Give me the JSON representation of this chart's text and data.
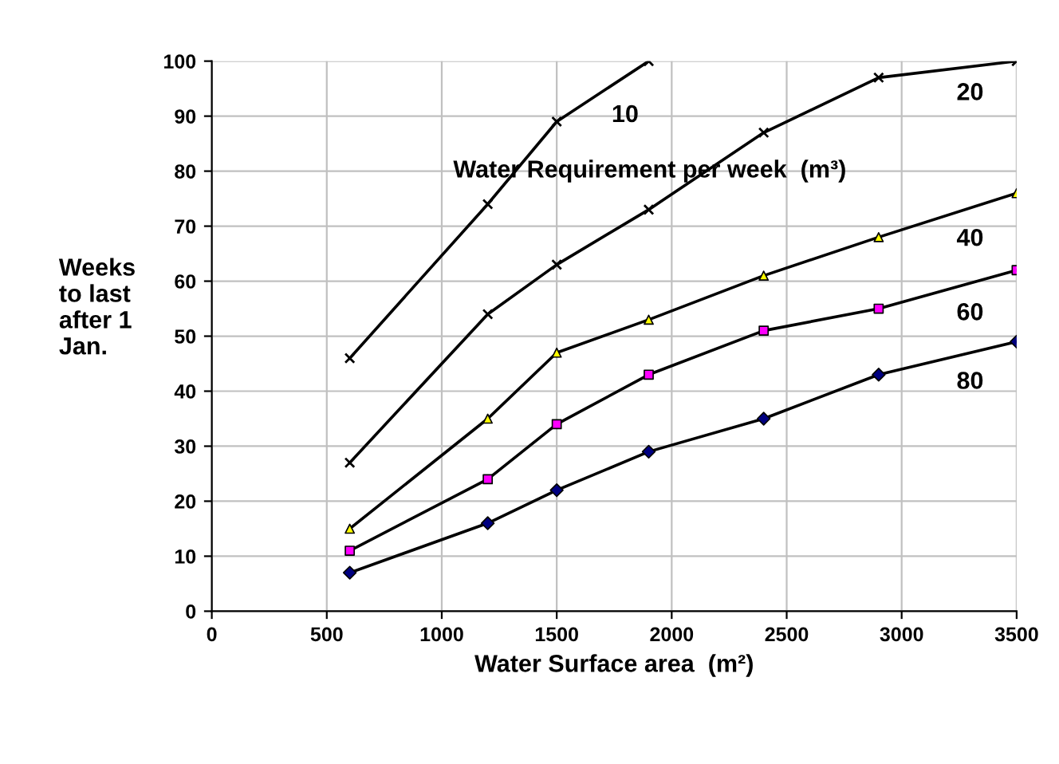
{
  "chart_data": {
    "type": "line",
    "xlabel": "Water Surface area  (m²)",
    "ylabel": "Weeks\nto last\nafter 1\nJan.",
    "annotations": [
      "Water Requirement per week  (m³)"
    ],
    "xlim": [
      0,
      3500
    ],
    "xticks": [
      0,
      500,
      1000,
      1500,
      2000,
      2500,
      3000,
      3500
    ],
    "ylim": [
      0,
      100
    ],
    "yticks": [
      0,
      10,
      20,
      30,
      40,
      50,
      60,
      70,
      80,
      90,
      100
    ],
    "grid": true,
    "legend": false,
    "line_style": "solid",
    "series": [
      {
        "name": "10",
        "color": "#000000",
        "marker": "cross",
        "colors": [
          "#000000",
          "#000000",
          "#000000",
          "#000000"
        ],
        "x": [
          600,
          1200,
          1500,
          1900
        ],
        "values": [
          46,
          74,
          89,
          100
        ]
      },
      {
        "name": "20",
        "color": "#000000",
        "marker": "cross",
        "colors": [
          "#000000",
          "#000000",
          "#000000",
          "#000000",
          "#000000",
          "#000000",
          "#000000"
        ],
        "x": [
          600,
          1200,
          1500,
          1900,
          2400,
          2900,
          3500
        ],
        "values": [
          27,
          54,
          63,
          73,
          87,
          97,
          100
        ]
      },
      {
        "name": "40",
        "color": "#000000",
        "marker": "triangle",
        "colors": [
          "#ffff00",
          "#ffff00",
          "#ffff00",
          "#ffff00",
          "#ffff00",
          "#ffff00",
          "#ffff00"
        ],
        "x": [
          600,
          1200,
          1500,
          1900,
          2400,
          2900,
          3500
        ],
        "values": [
          15,
          35,
          47,
          53,
          61,
          68,
          76
        ]
      },
      {
        "name": "60",
        "color": "#000000",
        "marker": "square",
        "colors": [
          "#ff00ff",
          "#ff00ff",
          "#ff00ff",
          "#ff00ff",
          "#ff00ff",
          "#ff00ff",
          "#ff00ff"
        ],
        "x": [
          600,
          1200,
          1500,
          1900,
          2400,
          2900,
          3500
        ],
        "values": [
          11,
          24,
          34,
          43,
          51,
          55,
          62
        ]
      },
      {
        "name": "80",
        "color": "#000000",
        "marker": "diamond",
        "colors": [
          "#000080",
          "#000080",
          "#000080",
          "#000080",
          "#000080",
          "#000080",
          "#000080"
        ],
        "x": [
          600,
          1200,
          1500,
          1900,
          2400,
          2900,
          3500
        ],
        "values": [
          7,
          16,
          22,
          29,
          35,
          43,
          49
        ]
      }
    ]
  }
}
